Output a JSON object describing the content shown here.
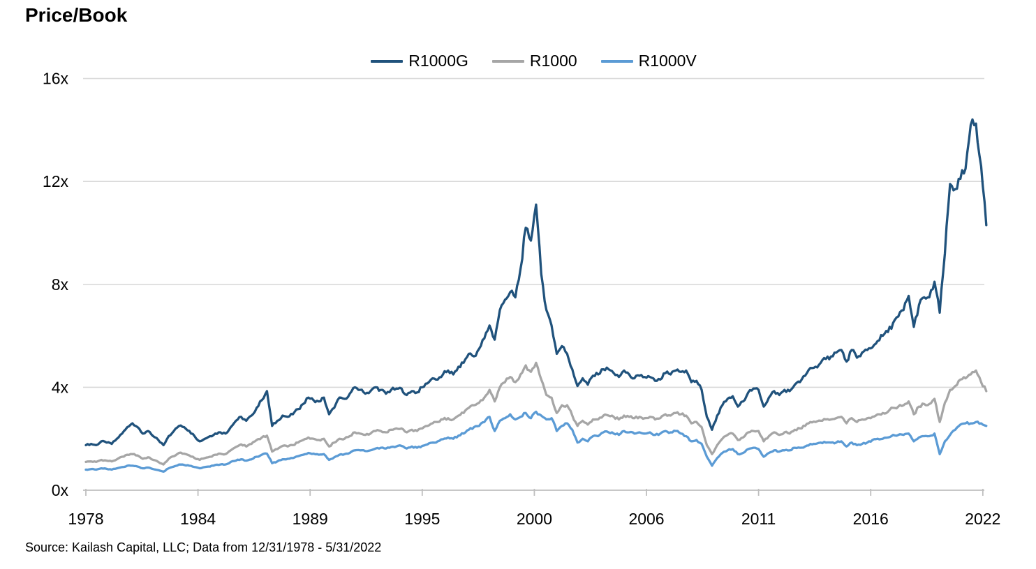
{
  "title": "Price/Book",
  "source": "Source: Kailash Capital, LLC; Data from 12/31/1978 - 5/31/2022",
  "colors": {
    "r1000g": "#20527C",
    "r1000": "#A6A6A6",
    "r1000v": "#5B9BD5",
    "gridline": "#D9D9D9",
    "axis": "#BFBFBF",
    "text": "#000000"
  },
  "chart_data": {
    "type": "line",
    "title": "Price/Book",
    "xlabel": "",
    "ylabel": "",
    "grid": "horizontal-only",
    "legend_position": "top-center",
    "y_axis": {
      "min": 0,
      "max": 16,
      "tick_step": 4,
      "tick_labels": [
        "0x",
        "4x",
        "8x",
        "12x",
        "16x"
      ]
    },
    "x_axis": {
      "tick_labels": [
        "1978",
        "1984",
        "1989",
        "1995",
        "2000",
        "2006",
        "2011",
        "2016",
        "2022"
      ],
      "tick_interval_years": 5.4167
    },
    "sampling": {
      "start": 1978.92,
      "step_years": 0.25,
      "end_label": "5/31/2022"
    },
    "series": [
      {
        "name": "R1000G",
        "color": "#20527C",
        "values": [
          1.75,
          1.8,
          1.75,
          1.9,
          1.85,
          1.8,
          2.0,
          2.2,
          2.45,
          2.6,
          2.45,
          2.2,
          2.3,
          2.1,
          1.95,
          1.75,
          2.1,
          2.3,
          2.5,
          2.45,
          2.3,
          2.1,
          1.9,
          2.0,
          2.1,
          2.2,
          2.25,
          2.2,
          2.45,
          2.7,
          2.85,
          2.7,
          2.9,
          3.2,
          3.5,
          3.85,
          2.5,
          2.7,
          2.9,
          2.85,
          2.95,
          3.15,
          3.35,
          3.6,
          3.5,
          3.45,
          3.6,
          2.95,
          3.2,
          3.6,
          3.55,
          3.75,
          4.0,
          3.9,
          3.75,
          3.85,
          4.0,
          3.9,
          3.75,
          3.9,
          3.95,
          3.95,
          3.7,
          3.85,
          3.8,
          4.0,
          4.15,
          4.35,
          4.3,
          4.5,
          4.65,
          4.5,
          4.8,
          4.95,
          5.3,
          5.2,
          5.5,
          5.9,
          6.4,
          5.85,
          7.0,
          7.4,
          7.7,
          7.5,
          8.6,
          10.2,
          9.7,
          11.1,
          8.4,
          7.0,
          6.4,
          5.3,
          5.6,
          5.3,
          4.7,
          4.05,
          4.35,
          4.1,
          4.45,
          4.5,
          4.7,
          4.7,
          4.55,
          4.4,
          4.65,
          4.5,
          4.35,
          4.45,
          4.4,
          4.4,
          4.25,
          4.3,
          4.55,
          4.5,
          4.65,
          4.6,
          4.65,
          4.2,
          4.25,
          3.9,
          2.85,
          2.35,
          2.9,
          3.3,
          3.55,
          3.65,
          3.25,
          3.45,
          3.8,
          3.95,
          3.9,
          3.25,
          3.6,
          3.85,
          3.7,
          3.9,
          3.85,
          4.1,
          4.2,
          4.45,
          4.75,
          4.8,
          4.95,
          5.1,
          5.2,
          5.35,
          5.45,
          5.0,
          5.45,
          5.15,
          5.35,
          5.45,
          5.55,
          5.8,
          6.0,
          6.15,
          6.5,
          6.75,
          7.0,
          7.55,
          6.35,
          7.2,
          7.5,
          7.5,
          8.1,
          6.9,
          9.2,
          11.9,
          11.7,
          12.1,
          12.5,
          14.2,
          14.25,
          12.6,
          10.3
        ]
      },
      {
        "name": "R1000",
        "color": "#A6A6A6",
        "values": [
          1.1,
          1.12,
          1.1,
          1.18,
          1.15,
          1.12,
          1.2,
          1.3,
          1.38,
          1.4,
          1.35,
          1.22,
          1.28,
          1.18,
          1.1,
          1.0,
          1.22,
          1.32,
          1.45,
          1.42,
          1.35,
          1.25,
          1.18,
          1.25,
          1.3,
          1.38,
          1.42,
          1.4,
          1.55,
          1.68,
          1.78,
          1.7,
          1.8,
          1.95,
          2.05,
          2.12,
          1.5,
          1.6,
          1.72,
          1.7,
          1.75,
          1.85,
          1.95,
          2.05,
          2.0,
          1.95,
          2.0,
          1.7,
          1.85,
          2.0,
          2.0,
          2.1,
          2.25,
          2.2,
          2.15,
          2.2,
          2.3,
          2.3,
          2.25,
          2.35,
          2.4,
          2.4,
          2.25,
          2.35,
          2.3,
          2.4,
          2.5,
          2.6,
          2.65,
          2.75,
          2.8,
          2.75,
          2.9,
          3.0,
          3.2,
          3.3,
          3.4,
          3.6,
          3.9,
          3.45,
          4.0,
          4.2,
          4.4,
          4.2,
          4.5,
          4.85,
          4.6,
          4.95,
          4.3,
          3.7,
          3.6,
          3.0,
          3.3,
          3.3,
          2.9,
          2.5,
          2.7,
          2.55,
          2.75,
          2.75,
          2.9,
          2.9,
          2.85,
          2.75,
          2.9,
          2.85,
          2.8,
          2.85,
          2.8,
          2.85,
          2.75,
          2.8,
          2.95,
          2.9,
          3.0,
          2.95,
          2.9,
          2.6,
          2.65,
          2.45,
          1.75,
          1.4,
          1.75,
          2.0,
          2.15,
          2.2,
          1.95,
          2.05,
          2.25,
          2.3,
          2.3,
          1.9,
          2.1,
          2.25,
          2.15,
          2.25,
          2.2,
          2.35,
          2.4,
          2.5,
          2.65,
          2.65,
          2.7,
          2.75,
          2.75,
          2.8,
          2.85,
          2.6,
          2.8,
          2.65,
          2.75,
          2.8,
          2.85,
          2.95,
          3.0,
          3.05,
          3.2,
          3.25,
          3.3,
          3.45,
          2.95,
          3.25,
          3.35,
          3.35,
          3.55,
          2.65,
          3.4,
          3.9,
          4.05,
          4.3,
          4.35,
          4.5,
          4.65,
          4.2,
          3.85
        ]
      },
      {
        "name": "R1000V",
        "color": "#5B9BD5",
        "values": [
          0.8,
          0.82,
          0.8,
          0.85,
          0.83,
          0.8,
          0.85,
          0.9,
          0.95,
          0.95,
          0.92,
          0.85,
          0.88,
          0.82,
          0.78,
          0.72,
          0.85,
          0.92,
          1.0,
          0.98,
          0.95,
          0.9,
          0.85,
          0.9,
          0.92,
          0.98,
          1.0,
          1.0,
          1.1,
          1.15,
          1.2,
          1.15,
          1.2,
          1.3,
          1.38,
          1.42,
          1.05,
          1.12,
          1.2,
          1.22,
          1.25,
          1.32,
          1.38,
          1.45,
          1.42,
          1.38,
          1.4,
          1.18,
          1.28,
          1.38,
          1.4,
          1.45,
          1.55,
          1.55,
          1.52,
          1.55,
          1.62,
          1.65,
          1.62,
          1.68,
          1.7,
          1.72,
          1.62,
          1.7,
          1.65,
          1.72,
          1.78,
          1.85,
          1.9,
          1.98,
          2.05,
          2.0,
          2.12,
          2.2,
          2.35,
          2.45,
          2.5,
          2.65,
          2.85,
          2.3,
          2.7,
          2.8,
          2.95,
          2.75,
          2.85,
          3.0,
          2.8,
          3.05,
          2.9,
          2.75,
          2.8,
          2.3,
          2.5,
          2.6,
          2.35,
          1.85,
          2.0,
          1.9,
          2.1,
          2.1,
          2.25,
          2.25,
          2.2,
          2.15,
          2.3,
          2.25,
          2.2,
          2.25,
          2.2,
          2.25,
          2.15,
          2.2,
          2.3,
          2.25,
          2.3,
          2.2,
          2.1,
          1.9,
          1.95,
          1.8,
          1.3,
          0.95,
          1.25,
          1.45,
          1.55,
          1.6,
          1.4,
          1.45,
          1.6,
          1.65,
          1.6,
          1.3,
          1.45,
          1.55,
          1.5,
          1.55,
          1.55,
          1.65,
          1.65,
          1.7,
          1.8,
          1.8,
          1.85,
          1.85,
          1.85,
          1.85,
          1.9,
          1.7,
          1.85,
          1.75,
          1.8,
          1.85,
          1.95,
          2.0,
          2.0,
          2.05,
          2.15,
          2.15,
          2.15,
          2.2,
          1.9,
          2.05,
          2.1,
          2.1,
          2.2,
          1.4,
          1.9,
          2.15,
          2.35,
          2.55,
          2.6,
          2.6,
          2.65,
          2.6,
          2.5
        ]
      }
    ]
  }
}
